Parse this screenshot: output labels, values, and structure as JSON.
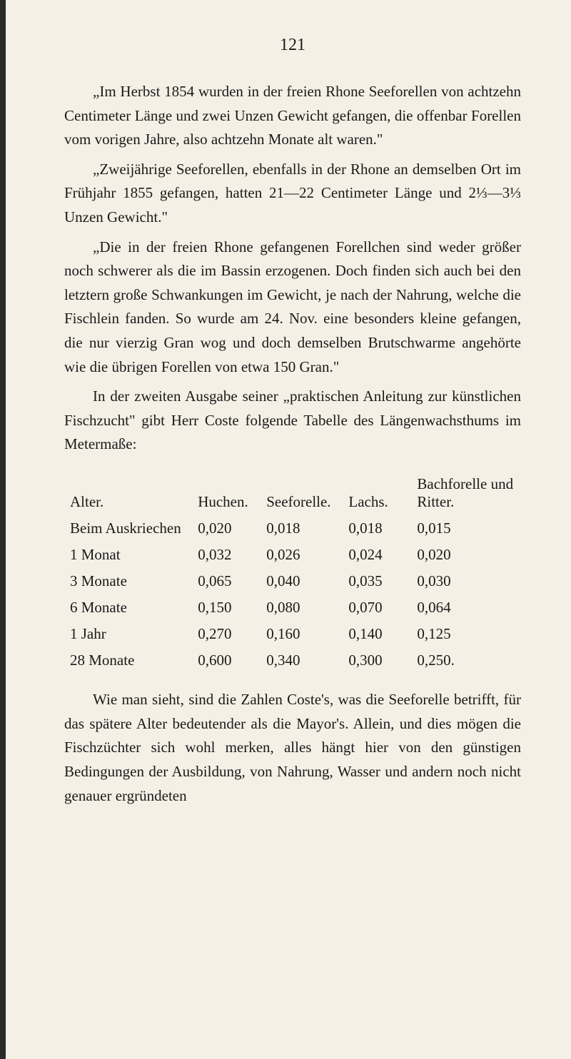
{
  "page_number": "121",
  "paragraphs": [
    "„Im Herbst 1854 wurden in der freien Rhone Seeforellen von achtzehn Centimeter Länge und zwei Unzen Gewicht gefangen, die offenbar Forellen vom vorigen Jahre, also achtzehn Monate alt waren.\"",
    "„Zweijährige Seeforellen, ebenfalls in der Rhone an dem­selben Ort im Frühjahr 1855 gefangen, hatten 21—22 Cen­timeter Länge und 2⅓—3⅓ Unzen Gewicht.\"",
    "„Die in der freien Rhone gefangenen Forellchen sind weder größer noch schwerer als die im Bassin erzogenen. Doch finden sich auch bei den letztern große Schwankungen im Gewicht, je nach der Nahrung, welche die Fischlein fanden. So wurde am 24. Nov. eine besonders kleine gefangen, die nur vierzig Gran wog und doch demselben Brutschwarme angehörte wie die übrigen Fo­rellen von etwa 150 Gran.\"",
    "In der zweiten Ausgabe seiner „praktischen Anleitung zur künstlichen Fischzucht\" gibt Herr Coste folgende Tabelle des Längen­wachsthums im Metermaße:"
  ],
  "table": {
    "headers": [
      "Alter.",
      "Huchen.",
      "Seeforelle.",
      "Lachs.",
      "Bachforelle und Ritter."
    ],
    "rows": [
      [
        "Beim Auskriechen",
        "0,020",
        "0,018",
        "0,018",
        "0,015"
      ],
      [
        "1 Monat",
        "0,032",
        "0,026",
        "0,024",
        "0,020"
      ],
      [
        "3 Monate",
        "0,065",
        "0,040",
        "0,035",
        "0,030"
      ],
      [
        "6 Monate",
        "0,150",
        "0,080",
        "0,070",
        "0,064"
      ],
      [
        "1 Jahr",
        "0,270",
        "0,160",
        "0,140",
        "0,125"
      ],
      [
        "28 Monate",
        "0,600",
        "0,340",
        "0,300",
        "0,250."
      ]
    ]
  },
  "final_paragraph": "Wie man sieht, sind die Zahlen Coste's, was die Seeforelle betrifft, für das spätere Alter bedeutender als die Mayor's. Allein, und dies mögen die Fischzüchter sich wohl merken, alles hängt hier von den günstigen Bedingungen der Ausbildung, von Nahrung, Wasser und andern noch nicht genauer ergründeten",
  "colors": {
    "background": "#f5f0e6",
    "text": "#1a1a1a",
    "border": "#2a2a2a"
  },
  "typography": {
    "body_fontsize": 21,
    "page_number_fontsize": 24,
    "line_height": 1.6,
    "font_family": "Georgia, Times New Roman, serif"
  }
}
